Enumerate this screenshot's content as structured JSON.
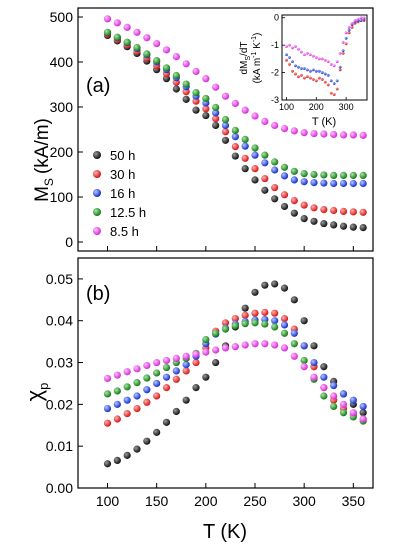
{
  "chart_data": [
    {
      "type": "scatter",
      "panel_label": "(a)",
      "ylabel_main": "M",
      "ylabel_sub": "S",
      "ylabel_unit": "(kA/m)",
      "xlim": [
        70,
        370
      ],
      "ylim": [
        -20,
        520
      ],
      "yticks": [
        "0",
        "100",
        "200",
        "300",
        "400",
        "500"
      ],
      "legend_position": "left-middle",
      "colors": {
        "50 h": "#111111",
        "30 h": "#e41a1c",
        "16 h": "#1f3fd6",
        "12.5 h": "#1a8a1a",
        "8.5 h": "#e23ce2"
      },
      "series": [
        {
          "name": "50 h",
          "x": [
            100,
            110,
            120,
            130,
            140,
            150,
            160,
            170,
            180,
            190,
            200,
            210,
            220,
            230,
            240,
            250,
            260,
            270,
            280,
            290,
            300,
            310,
            320,
            330,
            340,
            350,
            360
          ],
          "y": [
            459,
            447,
            434,
            419,
            402,
            383,
            363,
            340,
            317,
            293,
            281,
            259,
            226,
            191,
            163,
            138,
            115,
            96,
            79,
            64,
            52,
            46,
            41,
            38,
            35,
            33,
            32
          ]
        },
        {
          "name": "30 h",
          "x": [
            100,
            110,
            120,
            130,
            140,
            150,
            160,
            170,
            180,
            190,
            200,
            210,
            220,
            230,
            240,
            250,
            260,
            270,
            280,
            290,
            300,
            310,
            320,
            330,
            340,
            350,
            360
          ],
          "y": [
            462,
            450,
            438,
            424,
            409,
            392,
            374,
            355,
            334,
            313,
            296,
            274,
            245,
            212,
            186,
            163,
            141,
            121,
            105,
            92,
            82,
            76,
            72,
            70,
            68,
            67,
            66
          ]
        },
        {
          "name": "16 h",
          "x": [
            100,
            110,
            120,
            130,
            140,
            150,
            160,
            170,
            180,
            190,
            200,
            210,
            220,
            230,
            240,
            250,
            260,
            270,
            280,
            290,
            300,
            310,
            320,
            330,
            340,
            350,
            360
          ],
          "y": [
            465,
            454,
            443,
            430,
            416,
            400,
            383,
            365,
            345,
            324,
            309,
            287,
            259,
            234,
            213,
            193,
            176,
            160,
            147,
            138,
            134,
            132,
            131,
            130,
            130,
            130,
            130
          ]
        },
        {
          "name": "12.5 h",
          "x": [
            100,
            110,
            120,
            130,
            140,
            150,
            160,
            170,
            180,
            190,
            200,
            210,
            220,
            230,
            240,
            250,
            260,
            270,
            280,
            290,
            300,
            310,
            320,
            330,
            340,
            350,
            360
          ],
          "y": [
            466,
            455,
            444,
            432,
            418,
            403,
            387,
            370,
            351,
            332,
            319,
            299,
            272,
            248,
            228,
            209,
            193,
            178,
            166,
            157,
            152,
            150,
            149,
            148,
            148,
            148,
            148
          ]
        },
        {
          "name": "8.5 h",
          "x": [
            100,
            110,
            120,
            130,
            140,
            150,
            160,
            170,
            180,
            190,
            200,
            210,
            220,
            230,
            240,
            250,
            260,
            270,
            280,
            290,
            300,
            310,
            320,
            330,
            340,
            350,
            360
          ],
          "y": [
            496,
            487,
            477,
            466,
            454,
            441,
            427,
            412,
            396,
            379,
            363,
            344,
            324,
            308,
            293,
            280,
            268,
            259,
            252,
            247,
            243,
            241,
            240,
            239,
            238,
            238,
            237
          ]
        }
      ]
    },
    {
      "type": "scatter",
      "role": "inset",
      "xlabel": "T (K)",
      "ylabel_line1": "dM /dT",
      "ylabel_line1_sub": "S",
      "ylabel_line2": "(kA m K )",
      "ylabel_line2_sup": [
        "-1",
        "-1"
      ],
      "xlim": [
        85,
        370
      ],
      "ylim": [
        -3,
        0.1
      ],
      "xticks": [
        "100",
        "200",
        "300"
      ],
      "yticks": [
        "0",
        "-1",
        "-2",
        "-3"
      ],
      "series": [
        {
          "name": "30 h",
          "x": [
            100,
            110,
            120,
            130,
            140,
            150,
            160,
            170,
            180,
            190,
            200,
            210,
            220,
            230,
            240,
            250,
            260,
            270,
            280,
            290,
            300,
            310,
            320,
            330,
            340,
            350,
            360
          ],
          "y": [
            -1.55,
            -1.7,
            -1.95,
            -2.05,
            -2.15,
            -2.1,
            -2.2,
            -2.15,
            -2.2,
            -2.25,
            -2.3,
            -2.2,
            -2.25,
            -2.35,
            -2.45,
            -2.75,
            -2.8,
            -2.6,
            -1.9,
            -1.3,
            -0.95,
            -0.55,
            -0.35,
            -0.2,
            -0.15,
            -0.1,
            -0.1
          ]
        },
        {
          "name": "16 h",
          "x": [
            100,
            110,
            120,
            130,
            140,
            150,
            160,
            170,
            180,
            190,
            200,
            210,
            220,
            230,
            240,
            250,
            260,
            270,
            280,
            290,
            300,
            310,
            320,
            330,
            340,
            350,
            360
          ],
          "y": [
            -1.35,
            -1.45,
            -1.6,
            -1.75,
            -1.8,
            -1.85,
            -1.85,
            -1.9,
            -1.95,
            -1.9,
            -1.95,
            -1.95,
            -2.0,
            -2.05,
            -2.1,
            -2.3,
            -2.4,
            -2.3,
            -1.8,
            -1.2,
            -0.75,
            -0.45,
            -0.25,
            -0.15,
            -0.1,
            -0.1,
            -0.05
          ]
        },
        {
          "name": "8.5 h",
          "x": [
            100,
            110,
            120,
            130,
            140,
            150,
            160,
            170,
            180,
            190,
            200,
            210,
            220,
            230,
            240,
            250,
            260,
            270,
            280,
            290,
            300,
            310,
            320,
            330,
            340,
            350,
            360
          ],
          "y": [
            -1.05,
            -1.0,
            -1.1,
            -1.05,
            -1.15,
            -1.25,
            -1.35,
            -1.3,
            -1.35,
            -1.4,
            -1.45,
            -1.5,
            -1.5,
            -1.55,
            -1.6,
            -1.7,
            -1.75,
            -1.6,
            -1.3,
            -0.9,
            -0.55,
            -0.35,
            -0.2,
            -0.1,
            -0.05,
            0.0,
            0.0
          ]
        }
      ]
    },
    {
      "type": "scatter",
      "panel_label": "(b)",
      "ylabel_main": "χ",
      "ylabel_sub": "p",
      "xlabel": "T (K)",
      "xlim": [
        70,
        370
      ],
      "ylim": [
        0,
        0.055
      ],
      "xticks": [
        "100",
        "150",
        "200",
        "250",
        "300",
        "350"
      ],
      "yticks": [
        "0.00",
        "0.01",
        "0.02",
        "0.03",
        "0.04",
        "0.05"
      ],
      "series": [
        {
          "name": "50 h",
          "x": [
            100,
            110,
            120,
            130,
            140,
            150,
            160,
            170,
            180,
            190,
            200,
            210,
            220,
            230,
            240,
            250,
            260,
            270,
            280,
            290,
            300,
            310,
            320,
            330,
            340,
            350,
            360
          ],
          "y": [
            0.0058,
            0.0066,
            0.0078,
            0.0093,
            0.0112,
            0.0133,
            0.0157,
            0.0183,
            0.021,
            0.024,
            0.0265,
            0.03,
            0.034,
            0.0385,
            0.043,
            0.0468,
            0.0485,
            0.0488,
            0.0478,
            0.045,
            0.04,
            0.034,
            0.029,
            0.0255,
            0.0225,
            0.02,
            0.018
          ]
        },
        {
          "name": "30 h",
          "x": [
            100,
            110,
            120,
            130,
            140,
            150,
            160,
            170,
            180,
            190,
            200,
            210,
            220,
            230,
            240,
            250,
            260,
            270,
            280,
            290,
            300,
            310,
            320,
            330,
            340,
            350,
            360
          ],
          "y": [
            0.0155,
            0.0165,
            0.0178,
            0.019,
            0.0205,
            0.022,
            0.024,
            0.026,
            0.028,
            0.03,
            0.0335,
            0.0375,
            0.0395,
            0.0405,
            0.0413,
            0.0418,
            0.042,
            0.0418,
            0.0405,
            0.038,
            0.034,
            0.029,
            0.024,
            0.021,
            0.019,
            0.0175,
            0.0165
          ]
        },
        {
          "name": "16 h",
          "x": [
            100,
            110,
            120,
            130,
            140,
            150,
            160,
            170,
            180,
            190,
            200,
            210,
            220,
            230,
            240,
            250,
            260,
            270,
            280,
            290,
            300,
            310,
            320,
            330,
            340,
            350,
            360
          ],
          "y": [
            0.019,
            0.02,
            0.021,
            0.022,
            0.0235,
            0.025,
            0.0265,
            0.028,
            0.0295,
            0.0315,
            0.0345,
            0.0368,
            0.0382,
            0.0392,
            0.0398,
            0.0402,
            0.0403,
            0.04,
            0.039,
            0.037,
            0.034,
            0.03,
            0.0265,
            0.0245,
            0.0225,
            0.021,
            0.0195
          ]
        },
        {
          "name": "12.5 h",
          "x": [
            100,
            110,
            120,
            130,
            140,
            150,
            160,
            170,
            180,
            190,
            200,
            210,
            220,
            230,
            240,
            250,
            260,
            270,
            280,
            290,
            300,
            310,
            320,
            330,
            340,
            350,
            360
          ],
          "y": [
            0.0225,
            0.0232,
            0.0242,
            0.0252,
            0.0263,
            0.0275,
            0.0288,
            0.03,
            0.031,
            0.0322,
            0.0355,
            0.037,
            0.038,
            0.0388,
            0.0393,
            0.0395,
            0.0392,
            0.0385,
            0.037,
            0.0345,
            0.0305,
            0.026,
            0.022,
            0.0195,
            0.018,
            0.017,
            0.016
          ]
        },
        {
          "name": "8.5 h",
          "x": [
            100,
            110,
            120,
            130,
            140,
            150,
            160,
            170,
            180,
            190,
            200,
            210,
            220,
            230,
            240,
            250,
            260,
            270,
            280,
            290,
            300,
            310,
            320,
            330,
            340,
            350,
            360
          ],
          "y": [
            0.0262,
            0.027,
            0.0278,
            0.0285,
            0.0293,
            0.03,
            0.0305,
            0.031,
            0.0315,
            0.032,
            0.0325,
            0.033,
            0.0335,
            0.0338,
            0.0342,
            0.0345,
            0.0345,
            0.0342,
            0.0335,
            0.0315,
            0.029,
            0.0265,
            0.024,
            0.022,
            0.02,
            0.018,
            0.0165
          ]
        }
      ]
    }
  ]
}
